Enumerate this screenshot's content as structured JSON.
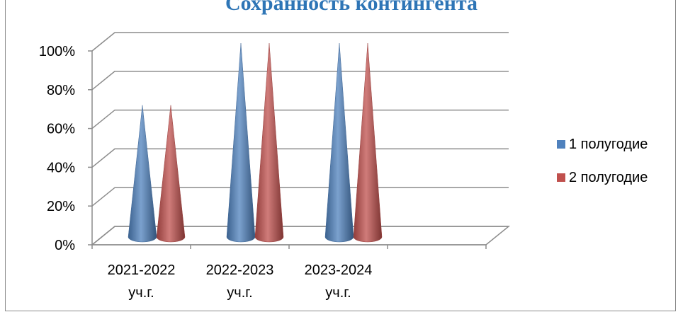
{
  "chart_data": {
    "type": "bar",
    "title": "Сохранность контингента",
    "categories": [
      [
        "2021-2022",
        "уч.г."
      ],
      [
        "2022-2023",
        "уч.г."
      ],
      [
        "2023-2024",
        "уч.г."
      ]
    ],
    "series": [
      {
        "name": "1 полугодие",
        "color": "#4f81bd",
        "values": [
          0.68,
          1.0,
          1.0
        ]
      },
      {
        "name": "2 полугодие",
        "color": "#c0504d",
        "values": [
          0.68,
          1.0,
          1.0
        ]
      }
    ],
    "y_ticks": [
      "0%",
      "20%",
      "40%",
      "60%",
      "80%",
      "100%"
    ],
    "ylim": [
      0,
      1
    ],
    "grid": true,
    "legend_position": "right",
    "style": "3d-cone"
  }
}
